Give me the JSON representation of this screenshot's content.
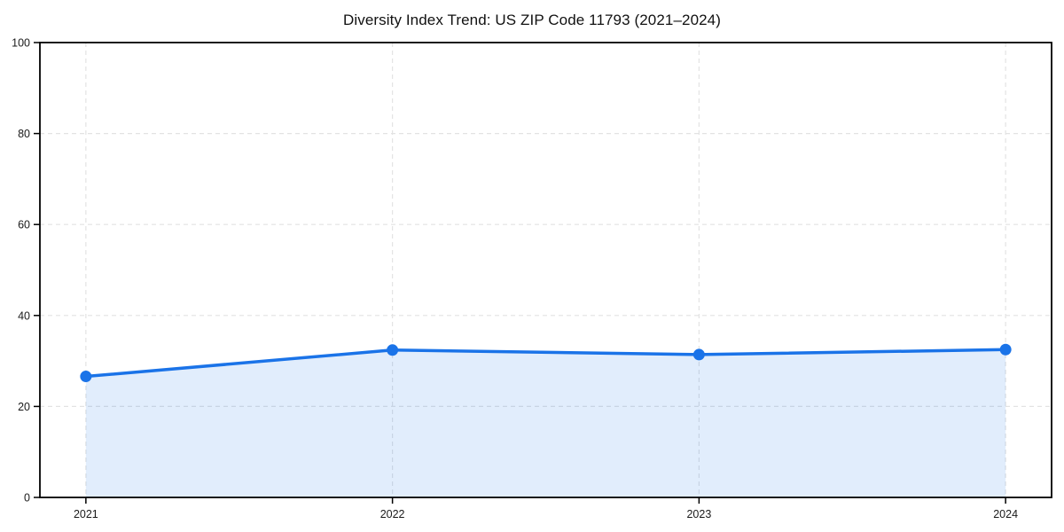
{
  "chart_data": {
    "type": "area",
    "title": "Diversity Index Trend: US ZIP Code 11793 (2021–2024)",
    "x": [
      2021,
      2022,
      2023,
      2024
    ],
    "xticks": [
      "2021",
      "2022",
      "2023",
      "2024"
    ],
    "values": [
      26.6,
      32.4,
      31.4,
      32.5
    ],
    "xlabel": "",
    "ylabel": "",
    "xlim": [
      2020.85,
      2024.15
    ],
    "ylim": [
      0,
      100
    ],
    "yticks": [
      0,
      20,
      40,
      60,
      80,
      100
    ],
    "grid": "dashed, horizontal and vertical at ticks",
    "legend": "none",
    "colors": {
      "line": "#1a73e8",
      "fill_opacity": 0.13,
      "grid": "#e3e3e3",
      "axis": "#000000",
      "text": "#1a1a1a"
    }
  }
}
